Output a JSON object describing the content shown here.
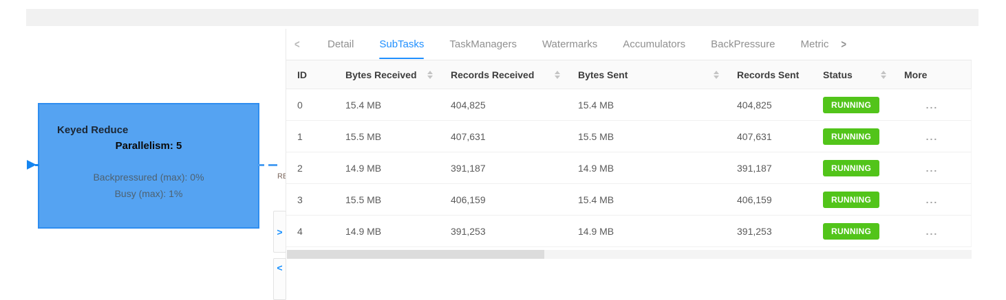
{
  "graph": {
    "node": {
      "name": "Keyed Reduce",
      "parallelism": "Parallelism: 5",
      "backpressured": "Backpressured (max): 0%",
      "busy": "Busy (max): 1%"
    },
    "edge_label": "RE",
    "expand_handle": ">",
    "collapse_handle": "<",
    "colors": {
      "node_fill": "#55A3F2",
      "node_border": "#2E8DF0",
      "accent": "#1890FF"
    }
  },
  "tabs": {
    "prev_arrow": "<",
    "next_arrow": ">",
    "items": [
      {
        "label": "Detail",
        "active": false
      },
      {
        "label": "SubTasks",
        "active": true
      },
      {
        "label": "TaskManagers",
        "active": false
      },
      {
        "label": "Watermarks",
        "active": false
      },
      {
        "label": "Accumulators",
        "active": false
      },
      {
        "label": "BackPressure",
        "active": false
      },
      {
        "label": "Metric",
        "active": false
      }
    ]
  },
  "table": {
    "columns": [
      {
        "label": "ID",
        "sortable": false
      },
      {
        "label": "Bytes Received",
        "sortable": true
      },
      {
        "label": "Records Received",
        "sortable": true
      },
      {
        "label": "Bytes Sent",
        "sortable": true
      },
      {
        "label": "Records Sent",
        "sortable": false
      },
      {
        "label": "Status",
        "sortable": true
      },
      {
        "label": "More",
        "sortable": false
      }
    ],
    "rows": [
      {
        "id": "0",
        "bytes_received": "15.4 MB",
        "records_received": "404,825",
        "bytes_sent": "15.4 MB",
        "records_sent": "404,825",
        "status": "RUNNING",
        "more": "..."
      },
      {
        "id": "1",
        "bytes_received": "15.5 MB",
        "records_received": "407,631",
        "bytes_sent": "15.5 MB",
        "records_sent": "407,631",
        "status": "RUNNING",
        "more": "..."
      },
      {
        "id": "2",
        "bytes_received": "14.9 MB",
        "records_received": "391,187",
        "bytes_sent": "14.9 MB",
        "records_sent": "391,187",
        "status": "RUNNING",
        "more": "..."
      },
      {
        "id": "3",
        "bytes_received": "15.5 MB",
        "records_received": "406,159",
        "bytes_sent": "15.4 MB",
        "records_sent": "406,159",
        "status": "RUNNING",
        "more": "..."
      },
      {
        "id": "4",
        "bytes_received": "14.9 MB",
        "records_received": "391,253",
        "bytes_sent": "14.9 MB",
        "records_sent": "391,253",
        "status": "RUNNING",
        "more": "..."
      }
    ],
    "status_color": "#52C41A"
  }
}
